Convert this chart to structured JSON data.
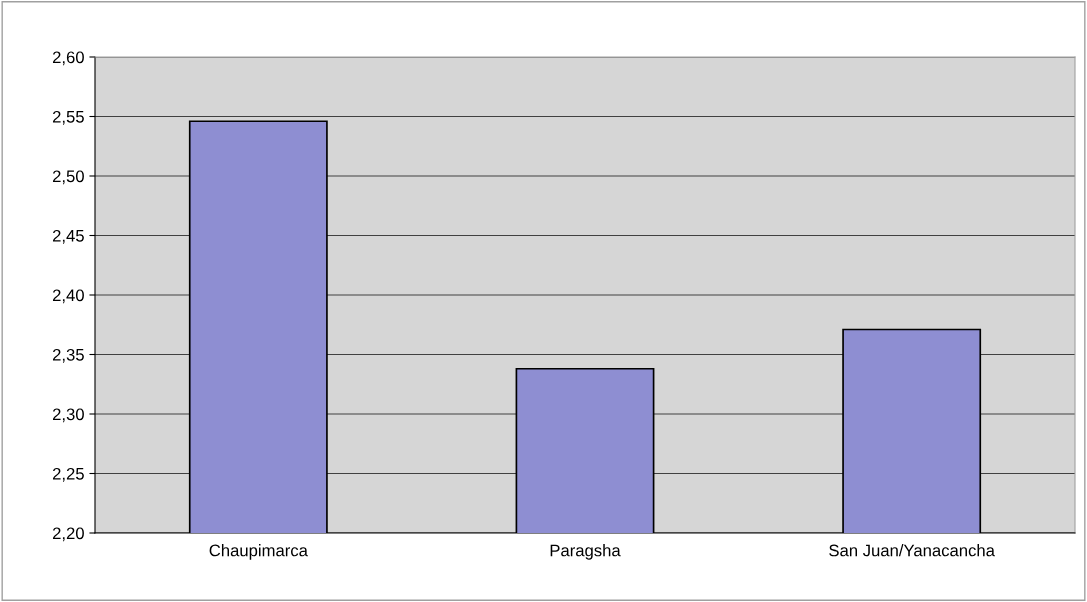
{
  "chart_data": {
    "type": "bar",
    "categories": [
      "Chaupimarca",
      "Paragsha",
      "San Juan/Yanacancha"
    ],
    "values": [
      2.546,
      2.338,
      2.371
    ],
    "color": "#8e8ed2",
    "ylim": [
      2.2,
      2.6
    ],
    "yticks": [
      {
        "value": 2.2,
        "label": "2,20"
      },
      {
        "value": 2.25,
        "label": "2,25"
      },
      {
        "value": 2.3,
        "label": "2,30"
      },
      {
        "value": 2.35,
        "label": "2,35"
      },
      {
        "value": 2.4,
        "label": "2,40"
      },
      {
        "value": 2.45,
        "label": "2,45"
      },
      {
        "value": 2.5,
        "label": "2,50"
      },
      {
        "value": 2.55,
        "label": "2,55"
      },
      {
        "value": 2.6,
        "label": "2,60"
      }
    ],
    "grid": "y",
    "legend": false
  }
}
